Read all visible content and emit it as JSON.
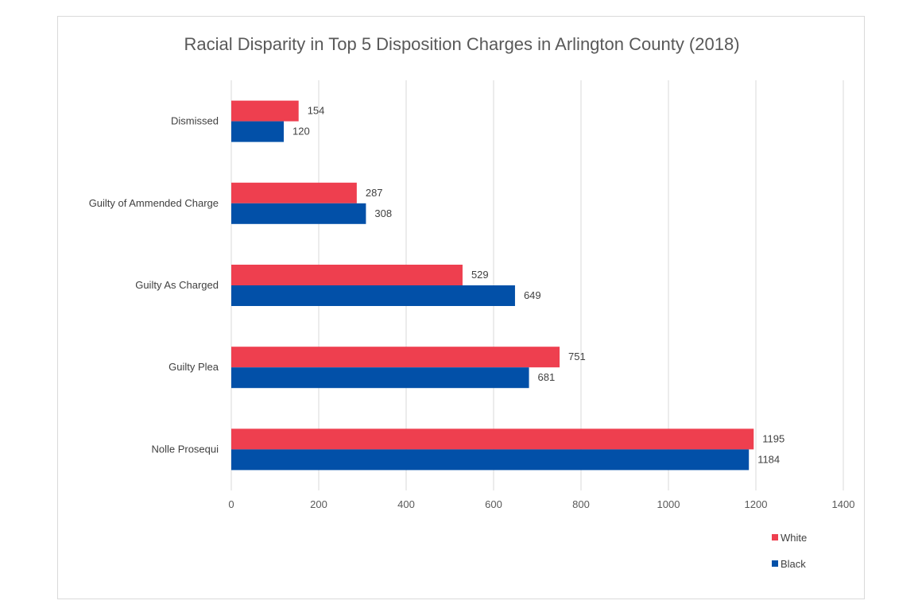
{
  "chart_data": {
    "type": "bar",
    "orientation": "horizontal",
    "title": "Racial Disparity in Top 5 Disposition Charges in Arlington County (2018)",
    "categories": [
      "Dismissed",
      "Guilty of Ammended Charge",
      "Guilty As Charged",
      "Guilty Plea",
      "Nolle Prosequi"
    ],
    "series": [
      {
        "name": "White",
        "color": "#ee3f4f",
        "values": [
          154,
          287,
          529,
          751,
          1195
        ]
      },
      {
        "name": "Black",
        "color": "#0250a8",
        "values": [
          120,
          308,
          649,
          681,
          1184
        ]
      }
    ],
    "xlim": [
      0,
      1400
    ],
    "x_ticks": [
      0,
      200,
      400,
      600,
      800,
      1000,
      1200,
      1400
    ],
    "grid": true,
    "data_labels": true,
    "legend_position": "bottom-right"
  }
}
